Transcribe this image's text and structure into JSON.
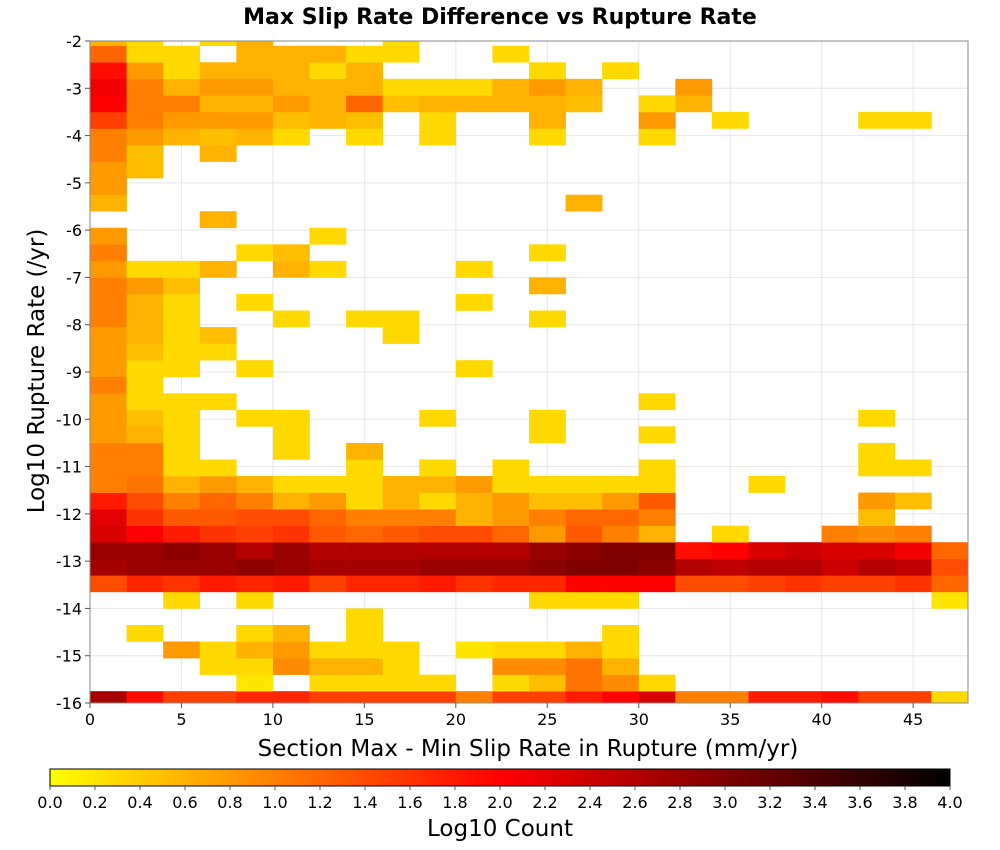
{
  "chart_data": {
    "type": "heatmap",
    "title": "Max Slip Rate Difference vs Rupture Rate",
    "xlabel": "Section Max - Min Slip Rate in Rupture (mm/yr)",
    "ylabel": "Log10 Rupture Rate (/yr)",
    "xlim": [
      0,
      48
    ],
    "ylim": [
      -16,
      -2
    ],
    "x_ticks": [
      0,
      5,
      10,
      15,
      20,
      25,
      30,
      35,
      40,
      45
    ],
    "y_ticks": [
      -2,
      -3,
      -4,
      -5,
      -6,
      -7,
      -8,
      -9,
      -10,
      -11,
      -12,
      -13,
      -14,
      -15,
      -16
    ],
    "grid": true,
    "colorbar": {
      "label": "Log10 Count",
      "min": 0.0,
      "max": 4.0,
      "ticks": [
        "0.0",
        "0.2",
        "0.4",
        "0.6",
        "0.8",
        "1.0",
        "1.2",
        "1.4",
        "1.6",
        "1.8",
        "2.0",
        "2.2",
        "2.4",
        "2.6",
        "2.8",
        "3.0",
        "3.2",
        "3.4",
        "3.6",
        "3.8",
        "4.0"
      ],
      "colors": [
        "#ffff00",
        "#ff0000",
        "#000000"
      ]
    },
    "bin_width_x": 2,
    "bin_height_y": 0.35,
    "x_bin_starts": [
      0,
      2,
      4,
      6,
      8,
      10,
      12,
      14,
      16,
      18,
      20,
      22,
      24,
      26,
      28,
      30,
      32,
      34,
      36,
      38,
      40,
      42,
      44,
      46
    ],
    "y_bin_starts": [
      -16.1,
      -15.75,
      -15.4,
      -15.05,
      -14.7,
      -14.35,
      -14.0,
      -13.65,
      -13.3,
      -12.95,
      -12.6,
      -12.25,
      -11.9,
      -11.55,
      -11.2,
      -10.85,
      -10.5,
      -10.15,
      -9.8,
      -9.45,
      -9.1,
      -8.75,
      -8.4,
      -8.05,
      -7.7,
      -7.35,
      -7.0,
      -6.65,
      -6.3,
      -5.95,
      -5.6,
      -5.25,
      -4.9,
      -4.55,
      -4.2,
      -3.85,
      -3.5,
      -3.15,
      -2.8,
      -2.45,
      -2.1
    ],
    "values": [
      [
        2.7,
        1.9,
        1.5,
        1.5,
        1.7,
        1.7,
        1.5,
        1.5,
        1.5,
        1.5,
        1.0,
        1.5,
        1.5,
        1.8,
        2.0,
        2.3,
        1.0,
        1.0,
        1.8,
        1.8,
        1.9,
        1.5,
        1.5,
        0.3
      ],
      [
        null,
        null,
        null,
        null,
        0.2,
        null,
        0.3,
        0.3,
        0.3,
        0.3,
        null,
        0.3,
        0.5,
        1.1,
        0.9,
        0.3,
        null,
        null,
        null,
        null,
        null,
        null,
        null,
        null
      ],
      [
        null,
        null,
        null,
        0.3,
        0.3,
        0.9,
        0.6,
        0.6,
        0.3,
        null,
        null,
        0.9,
        0.9,
        1.1,
        0.6,
        null,
        null,
        null,
        null,
        null,
        null,
        null,
        null,
        null
      ],
      [
        null,
        null,
        0.8,
        0.3,
        0.6,
        0.8,
        0.3,
        0.3,
        0.3,
        null,
        0.2,
        0.3,
        0.3,
        0.6,
        0.3,
        null,
        null,
        null,
        null,
        null,
        null,
        null,
        null,
        null
      ],
      [
        null,
        0.3,
        null,
        null,
        0.3,
        0.6,
        null,
        0.3,
        null,
        null,
        null,
        null,
        null,
        null,
        0.3,
        null,
        null,
        null,
        null,
        null,
        null,
        null,
        null,
        null
      ],
      [
        null,
        null,
        null,
        null,
        null,
        null,
        null,
        0.3,
        null,
        null,
        null,
        null,
        null,
        null,
        null,
        null,
        null,
        null,
        null,
        null,
        null,
        null,
        null,
        null
      ],
      [
        null,
        null,
        0.3,
        null,
        0.3,
        null,
        null,
        null,
        null,
        null,
        null,
        null,
        0.3,
        0.3,
        0.3,
        null,
        null,
        null,
        null,
        null,
        null,
        null,
        null,
        0.2
      ],
      [
        1.4,
        1.7,
        1.6,
        1.8,
        1.7,
        1.8,
        1.5,
        1.7,
        1.7,
        1.8,
        1.6,
        1.7,
        1.7,
        2.0,
        2.0,
        2.0,
        1.4,
        1.4,
        1.5,
        1.6,
        1.5,
        1.5,
        1.6,
        1.2
      ],
      [
        2.7,
        2.8,
        2.8,
        2.8,
        2.9,
        2.8,
        2.7,
        2.7,
        2.7,
        2.8,
        2.8,
        2.8,
        2.9,
        3.0,
        3.0,
        2.9,
        2.6,
        2.5,
        2.6,
        2.6,
        2.4,
        2.6,
        2.5,
        1.4
      ],
      [
        2.8,
        2.8,
        2.9,
        2.8,
        2.6,
        2.8,
        2.6,
        2.6,
        2.6,
        2.6,
        2.6,
        2.6,
        2.8,
        2.9,
        3.0,
        3.0,
        1.9,
        2.0,
        2.3,
        2.4,
        2.3,
        2.3,
        2.1,
        1.2
      ],
      [
        2.3,
        2.0,
        1.8,
        1.6,
        1.5,
        1.6,
        1.3,
        1.2,
        1.3,
        1.4,
        1.4,
        1.2,
        0.8,
        1.3,
        1.0,
        0.6,
        null,
        0.3,
        null,
        null,
        1.0,
        0.9,
        1.0,
        null
      ],
      [
        2.2,
        1.6,
        1.3,
        1.3,
        1.4,
        1.4,
        1.2,
        1.0,
        1.0,
        1.0,
        0.6,
        0.8,
        1.0,
        1.2,
        1.2,
        1.0,
        null,
        null,
        null,
        null,
        null,
        0.5,
        null,
        null
      ],
      [
        1.8,
        1.4,
        1.0,
        1.2,
        1.0,
        0.6,
        0.8,
        0.3,
        0.6,
        0.3,
        0.6,
        0.8,
        0.5,
        0.5,
        0.8,
        1.3,
        null,
        null,
        null,
        null,
        null,
        0.8,
        0.5,
        null
      ],
      [
        1.0,
        1.1,
        0.6,
        0.8,
        0.6,
        0.3,
        0.3,
        0.3,
        0.6,
        0.6,
        0.8,
        0.3,
        0.3,
        0.3,
        0.3,
        0.3,
        null,
        null,
        0.3,
        null,
        null,
        null,
        null,
        null
      ],
      [
        1.0,
        1.0,
        0.3,
        0.3,
        null,
        null,
        null,
        0.3,
        null,
        0.3,
        null,
        0.3,
        null,
        null,
        null,
        0.3,
        null,
        null,
        null,
        null,
        null,
        0.3,
        0.3,
        null
      ],
      [
        1.0,
        1.0,
        0.3,
        null,
        null,
        0.3,
        null,
        0.6,
        null,
        null,
        null,
        null,
        null,
        null,
        null,
        null,
        null,
        null,
        null,
        null,
        null,
        0.3,
        null,
        null
      ],
      [
        0.8,
        0.6,
        0.3,
        null,
        null,
        0.3,
        null,
        null,
        null,
        null,
        null,
        null,
        0.3,
        null,
        null,
        0.3,
        null,
        null,
        null,
        null,
        null,
        null,
        null,
        null
      ],
      [
        0.8,
        0.5,
        0.3,
        null,
        0.3,
        0.3,
        null,
        null,
        null,
        0.3,
        null,
        null,
        0.3,
        null,
        null,
        null,
        null,
        null,
        null,
        null,
        null,
        0.3,
        null,
        null
      ],
      [
        0.8,
        0.3,
        0.3,
        0.3,
        null,
        null,
        null,
        null,
        null,
        null,
        null,
        null,
        null,
        null,
        null,
        0.3,
        null,
        null,
        null,
        null,
        null,
        null,
        null,
        null
      ],
      [
        1.0,
        0.3,
        null,
        null,
        null,
        null,
        null,
        null,
        null,
        null,
        null,
        null,
        null,
        null,
        null,
        null,
        null,
        null,
        null,
        null,
        null,
        null,
        null,
        null
      ],
      [
        0.8,
        0.3,
        0.3,
        null,
        0.3,
        null,
        null,
        null,
        null,
        null,
        0.3,
        null,
        null,
        null,
        null,
        null,
        null,
        null,
        null,
        null,
        null,
        null,
        null,
        null
      ],
      [
        0.8,
        0.5,
        0.3,
        0.3,
        null,
        null,
        null,
        null,
        null,
        null,
        null,
        null,
        null,
        null,
        null,
        null,
        null,
        null,
        null,
        null,
        null,
        null,
        null,
        null
      ],
      [
        0.8,
        0.6,
        0.3,
        0.5,
        null,
        null,
        null,
        null,
        0.3,
        null,
        null,
        null,
        null,
        null,
        null,
        null,
        null,
        null,
        null,
        null,
        null,
        null,
        null,
        null
      ],
      [
        1.0,
        0.6,
        0.3,
        null,
        null,
        0.3,
        null,
        0.3,
        0.3,
        null,
        null,
        null,
        0.3,
        null,
        null,
        null,
        null,
        null,
        null,
        null,
        null,
        null,
        null,
        null
      ],
      [
        1.0,
        0.6,
        0.3,
        null,
        0.3,
        null,
        null,
        null,
        null,
        null,
        0.3,
        null,
        null,
        null,
        null,
        null,
        null,
        null,
        null,
        null,
        null,
        null,
        null,
        null
      ],
      [
        1.0,
        0.8,
        0.5,
        null,
        null,
        null,
        null,
        null,
        null,
        null,
        null,
        null,
        0.6,
        null,
        null,
        null,
        null,
        null,
        null,
        null,
        null,
        null,
        null,
        null
      ],
      [
        0.8,
        0.3,
        0.3,
        0.6,
        null,
        0.6,
        0.3,
        null,
        null,
        null,
        0.3,
        null,
        null,
        null,
        null,
        null,
        null,
        null,
        null,
        null,
        null,
        null,
        null,
        null
      ],
      [
        1.0,
        null,
        null,
        null,
        0.3,
        0.5,
        null,
        null,
        null,
        null,
        null,
        null,
        0.3,
        null,
        null,
        null,
        null,
        null,
        null,
        null,
        null,
        null,
        null,
        null
      ],
      [
        0.8,
        null,
        null,
        null,
        null,
        null,
        0.3,
        null,
        null,
        null,
        null,
        null,
        null,
        null,
        null,
        null,
        null,
        null,
        null,
        null,
        null,
        null,
        null,
        null
      ],
      [
        null,
        null,
        null,
        0.6,
        null,
        null,
        null,
        null,
        null,
        null,
        null,
        null,
        null,
        null,
        null,
        null,
        null,
        null,
        null,
        null,
        null,
        null,
        null,
        null
      ],
      [
        0.6,
        null,
        null,
        null,
        null,
        null,
        null,
        null,
        null,
        null,
        null,
        null,
        null,
        0.6,
        null,
        null,
        null,
        null,
        null,
        null,
        null,
        null,
        null,
        null
      ],
      [
        0.8,
        null,
        null,
        null,
        null,
        null,
        null,
        null,
        null,
        null,
        null,
        null,
        null,
        null,
        null,
        null,
        null,
        null,
        null,
        null,
        null,
        null,
        null,
        null
      ],
      [
        0.8,
        0.5,
        null,
        null,
        null,
        null,
        null,
        null,
        null,
        null,
        null,
        null,
        null,
        null,
        null,
        null,
        null,
        null,
        null,
        null,
        null,
        null,
        null,
        null
      ],
      [
        1.0,
        0.5,
        null,
        0.6,
        null,
        null,
        null,
        null,
        null,
        null,
        null,
        null,
        null,
        null,
        null,
        null,
        null,
        null,
        null,
        null,
        null,
        null,
        null,
        null
      ],
      [
        1.0,
        0.8,
        0.6,
        0.5,
        0.6,
        0.3,
        null,
        0.3,
        null,
        0.3,
        null,
        null,
        0.3,
        null,
        null,
        0.3,
        null,
        null,
        null,
        null,
        null,
        null,
        null,
        null
      ],
      [
        1.5,
        1.0,
        0.8,
        0.8,
        0.8,
        0.5,
        0.6,
        0.5,
        null,
        0.3,
        null,
        null,
        0.6,
        null,
        null,
        0.8,
        null,
        0.3,
        null,
        null,
        null,
        0.3,
        0.3,
        null
      ],
      [
        2.0,
        1.0,
        1.0,
        0.6,
        0.6,
        0.8,
        0.6,
        1.2,
        0.5,
        0.6,
        0.6,
        0.6,
        0.6,
        0.5,
        null,
        0.3,
        0.6,
        null,
        null,
        null,
        null,
        null,
        null,
        null
      ],
      [
        2.1,
        1.0,
        0.6,
        0.8,
        0.8,
        0.6,
        0.6,
        0.6,
        0.3,
        0.3,
        0.3,
        0.6,
        0.8,
        0.6,
        null,
        null,
        0.8,
        null,
        null,
        null,
        null,
        null,
        null,
        null
      ],
      [
        1.9,
        0.8,
        0.3,
        0.6,
        0.6,
        0.6,
        0.3,
        0.6,
        null,
        null,
        null,
        null,
        0.3,
        null,
        0.3,
        null,
        null,
        null,
        null,
        null,
        null,
        null,
        null,
        null
      ],
      [
        1.2,
        0.3,
        0.3,
        null,
        0.6,
        0.6,
        0.6,
        0.3,
        0.3,
        null,
        null,
        0.3,
        null,
        null,
        null,
        null,
        null,
        null,
        null,
        null,
        null,
        null,
        null,
        null
      ],
      [
        0.6,
        0.3,
        null,
        0.3,
        0.6,
        null,
        null,
        null,
        0.3,
        null,
        null,
        null,
        null,
        null,
        null,
        null,
        null,
        null,
        null,
        null,
        null,
        null,
        null,
        null
      ]
    ]
  }
}
